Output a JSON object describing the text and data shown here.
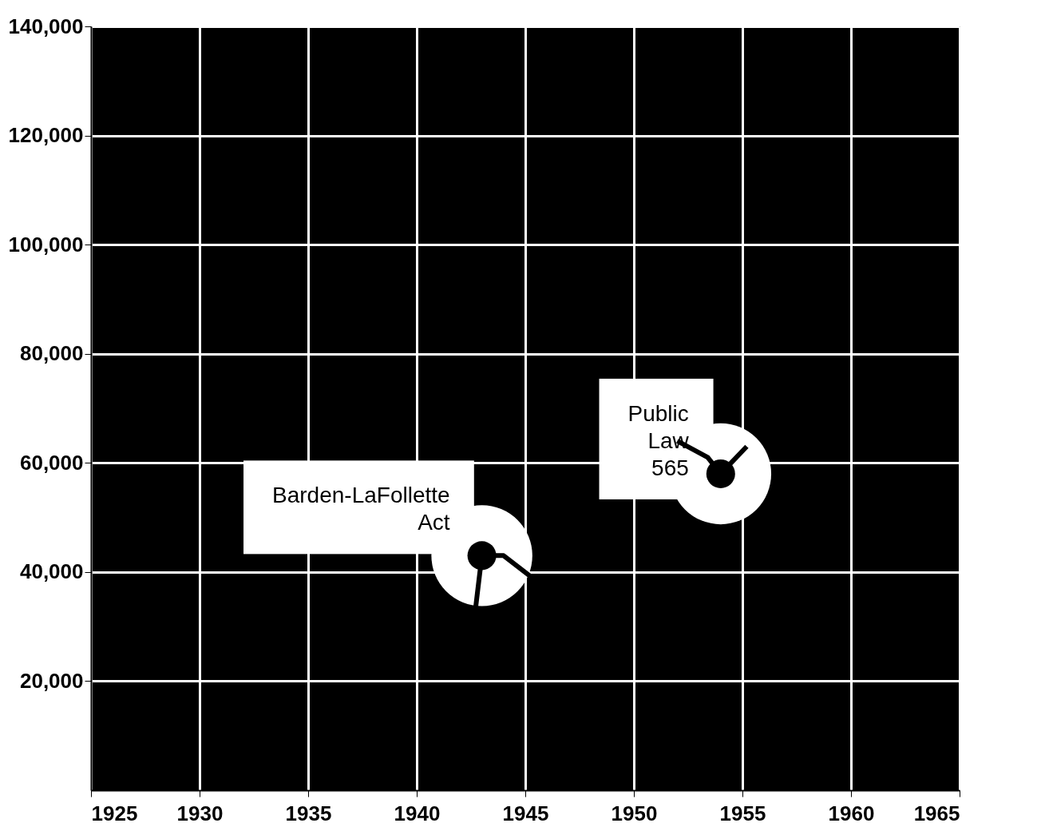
{
  "chart_data": {
    "type": "line",
    "x": [
      1942.7,
      1943,
      1944,
      1945.3,
      1948,
      1952,
      1953.4,
      1954,
      1955.2
    ],
    "series": [
      {
        "color": "#000000",
        "values": [
          33000,
          43000,
          43000,
          39000,
          null,
          64000,
          61000,
          58000,
          63000
        ]
      }
    ],
    "xlim": [
      1925,
      1965
    ],
    "xticks": [
      1925,
      1930,
      1935,
      1940,
      1945,
      1950,
      1955,
      1960,
      1965
    ],
    "ylim": [
      0,
      140000
    ],
    "yticks": [
      {
        "value": 20000,
        "label": "20,000"
      },
      {
        "value": 40000,
        "label": "40,000"
      },
      {
        "value": 60000,
        "label": "60,000"
      },
      {
        "value": 80000,
        "label": "80,000"
      },
      {
        "value": 100000,
        "label": "100,000"
      },
      {
        "value": 120000,
        "label": "120,000"
      },
      {
        "value": 140000,
        "label": "140,000"
      }
    ],
    "grid": true,
    "annotations": [
      {
        "text": "Barden-LaFollette Act",
        "x": 1943,
        "y": 43000
      },
      {
        "text": "Public Law 565",
        "x": 1954,
        "y": 58000
      }
    ]
  }
}
